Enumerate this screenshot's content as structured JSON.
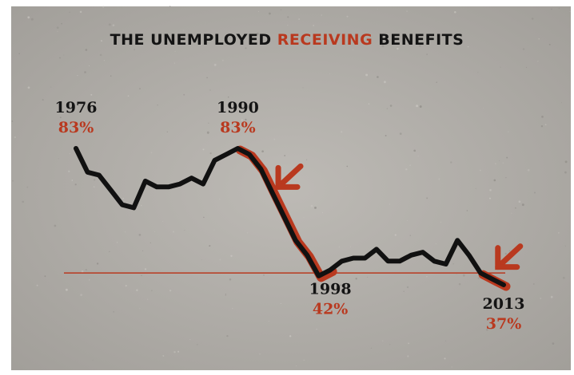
{
  "chart_data": {
    "type": "line",
    "title_parts": [
      {
        "text": "THE UNEMPLOYED ",
        "highlight": false
      },
      {
        "text": "RECEIVING",
        "highlight": true
      },
      {
        "text": " BENEFITS",
        "highlight": false
      }
    ],
    "xlabel": "",
    "ylabel": "",
    "xlim": [
      1976,
      2013
    ],
    "ylim": [
      30,
      90
    ],
    "grid": false,
    "series": [
      {
        "x": [
          1976,
          1977,
          1978,
          1979,
          1980,
          1981,
          1982,
          1983,
          1984,
          1985,
          1986,
          1987,
          1988,
          1989,
          1990,
          1991,
          1992,
          1993,
          1994,
          1995,
          1996,
          1997,
          1998,
          1999,
          2000,
          2001,
          2002,
          2003,
          2004,
          2005,
          2006,
          2007,
          2008,
          2009,
          2010,
          2011,
          2012,
          2013
        ],
        "values": [
          83,
          75,
          74,
          69,
          64,
          63,
          72,
          70,
          70,
          71,
          73,
          71,
          79,
          81,
          83,
          81,
          76,
          68,
          60,
          52,
          47,
          40,
          42,
          45,
          46,
          46,
          49,
          45,
          45,
          47,
          48,
          45,
          44,
          52,
          47,
          41,
          39,
          37
        ]
      }
    ],
    "highlight_ranges": [
      [
        1990,
        1998
      ],
      [
        2011,
        2013
      ]
    ],
    "reference_line": {
      "y": 41
    },
    "annotations": [
      {
        "x": 1976,
        "y": 83,
        "year": "1976",
        "value": "83%",
        "placement": "above"
      },
      {
        "x": 1990,
        "y": 83,
        "year": "1990",
        "value": "83%",
        "placement": "above"
      },
      {
        "x": 1998,
        "y": 42,
        "year": "1998",
        "value": "42%",
        "placement": "below"
      },
      {
        "x": 2013,
        "y": 37,
        "year": "2013",
        "value": "37%",
        "placement": "below"
      }
    ],
    "arrows": [
      {
        "x": 1993.5,
        "y": 70,
        "direction": "down-left"
      },
      {
        "x": 2012.5,
        "y": 43,
        "direction": "down-left"
      }
    ]
  },
  "colors": {
    "background": "#b5b2ad",
    "line": "#111111",
    "accent": "#b9391f",
    "year_text": "#141414",
    "title_text": "#141414"
  }
}
